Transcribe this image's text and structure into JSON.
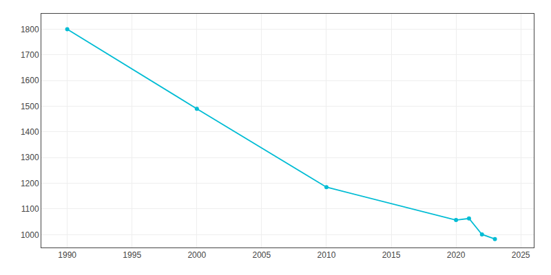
{
  "chart_data": {
    "type": "line",
    "x": [
      1990,
      2000,
      2010,
      2020,
      2021,
      2022,
      2023
    ],
    "values": [
      1800,
      1490,
      1185,
      1057,
      1063,
      1001,
      983
    ],
    "color": "#00BCD4",
    "marker": "circle",
    "line_style": "solid",
    "xlim": [
      1988,
      2026
    ],
    "ylim": [
      950,
      1860
    ],
    "xticks": [
      1990,
      1995,
      2000,
      2005,
      2010,
      2015,
      2020,
      2025
    ],
    "yticks": [
      1000,
      1100,
      1200,
      1300,
      1400,
      1500,
      1600,
      1700,
      1800
    ],
    "grid": true
  }
}
